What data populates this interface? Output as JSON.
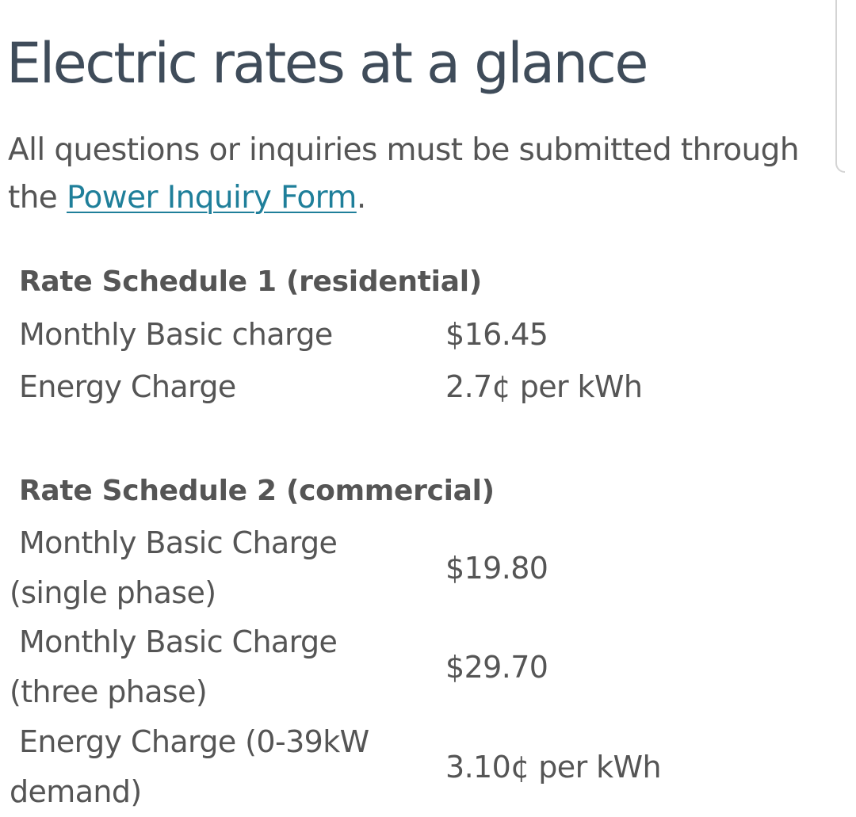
{
  "page": {
    "title": "Electric rates at a glance",
    "intro": {
      "text_before": "All questions or inquiries must be submitted through the ",
      "link_text": "Power Inquiry Form",
      "text_after": "."
    }
  },
  "schedules": [
    {
      "title": "Rate Schedule 1 (residential)",
      "rows": [
        {
          "label": "Monthly Basic charge",
          "value": "$16.45"
        },
        {
          "label": "Energy Charge",
          "value": "2.7¢ per kWh"
        }
      ]
    },
    {
      "title": "Rate Schedule 2 (commercial)",
      "rows": [
        {
          "label": "Monthly Basic Charge (single phase)",
          "value": "$19.80"
        },
        {
          "label": "Monthly Basic Charge (three phase)",
          "value": "$29.70"
        },
        {
          "label": "Energy Charge (0-39kW demand)",
          "value": "3.10¢ per kWh"
        }
      ]
    }
  ]
}
